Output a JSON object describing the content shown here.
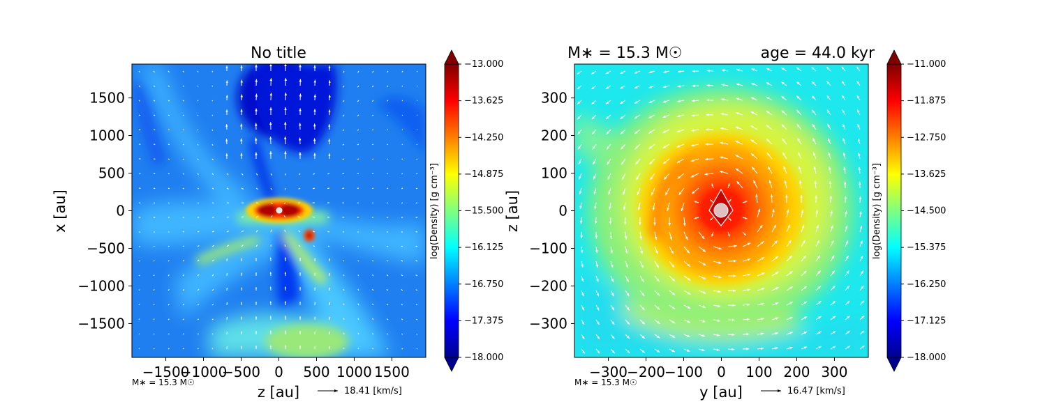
{
  "chart_data": [
    {
      "type": "heatmap",
      "title": "No title",
      "xlabel": "z [au]",
      "ylabel": "x [au]",
      "xlim": [
        -1950,
        1950
      ],
      "ylim": [
        -1950,
        1950
      ],
      "xticks": [
        -1500,
        -1000,
        -500,
        0,
        500,
        1000,
        1500
      ],
      "xtick_labels": [
        "−1500",
        "−1000",
        "−500",
        "0",
        "500",
        "1000",
        "1500"
      ],
      "yticks": [
        1500,
        1000,
        500,
        0,
        -500,
        -1000,
        -1500
      ],
      "ytick_labels": [
        "1500",
        "1000",
        "500",
        "0",
        "−500",
        "−1000",
        "−1500"
      ],
      "colorbar": {
        "label": "log(Density) [g cm⁻³]",
        "range": [
          -18.0,
          -13.0
        ],
        "ticks": [
          -13.0,
          -13.625,
          -14.25,
          -14.875,
          -15.5,
          -16.125,
          -16.75,
          -17.375,
          -18.0
        ],
        "tick_labels": [
          "−13.000",
          "−13.625",
          "−14.250",
          "−14.875",
          "−15.500",
          "−16.125",
          "−16.750",
          "−17.375",
          "−18.000"
        ]
      },
      "footnote": "M∗ = 15.3 M☉",
      "velocity_key": "18.41 [km/s]"
    },
    {
      "type": "heatmap",
      "title_left": "M∗ = 15.3 M☉",
      "title_right": "age = 44.0 kyr",
      "xlabel": "y [au]",
      "ylabel": "z [au]",
      "xlim": [
        -390,
        390
      ],
      "ylim": [
        -390,
        390
      ],
      "xticks": [
        -300,
        -200,
        -100,
        0,
        100,
        200,
        300
      ],
      "xtick_labels": [
        "−300",
        "−200",
        "−100",
        "0",
        "100",
        "200",
        "300"
      ],
      "yticks": [
        300,
        200,
        100,
        0,
        -100,
        -200,
        -300
      ],
      "ytick_labels": [
        "300",
        "200",
        "100",
        "0",
        "−100",
        "−200",
        "−300"
      ],
      "colorbar": {
        "label": "log(Density) [g cm⁻³]",
        "range": [
          -18.0,
          -11.0
        ],
        "ticks": [
          -11.0,
          -11.875,
          -12.75,
          -13.625,
          -14.5,
          -15.375,
          -16.25,
          -17.125,
          -18.0
        ],
        "tick_labels": [
          "−11.000",
          "−11.875",
          "−12.750",
          "−13.625",
          "−14.500",
          "−15.375",
          "−16.250",
          "−17.125",
          "−18.000"
        ]
      },
      "footnote": "M∗ = 15.3 M☉",
      "velocity_key": "16.47 [km/s]"
    }
  ]
}
